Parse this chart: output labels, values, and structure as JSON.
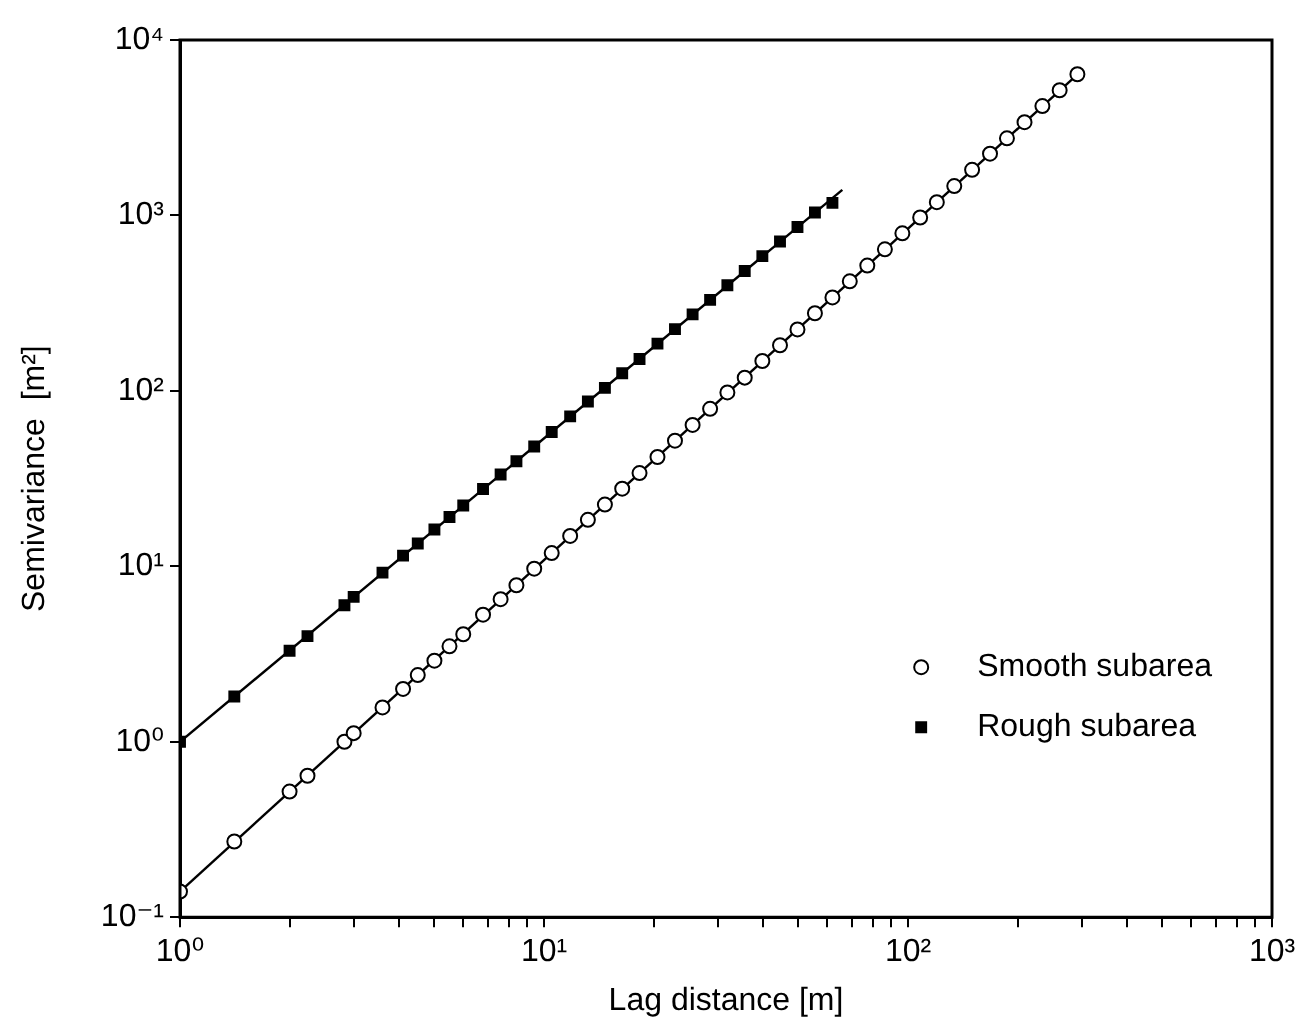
{
  "chart_data": {
    "type": "scatter",
    "xlabel": "Lag distance [m]",
    "ylabel": "Semivariance  [m²]",
    "log": "xy",
    "legend": "bottom right",
    "grid": false,
    "xlim": [
      1,
      1000
    ],
    "ylim": [
      0.1,
      10000
    ],
    "xticks": [
      {
        "value": 1,
        "label": "10⁰"
      },
      {
        "value": 2,
        "label": null
      },
      {
        "value": 3,
        "label": null
      },
      {
        "value": 4,
        "label": null
      },
      {
        "value": 5,
        "label": null
      },
      {
        "value": 6,
        "label": null
      },
      {
        "value": 7,
        "label": null
      },
      {
        "value": 8,
        "label": null
      },
      {
        "value": 9,
        "label": null
      },
      {
        "value": 10,
        "label": "10¹"
      },
      {
        "value": 20,
        "label": null
      },
      {
        "value": 30,
        "label": null
      },
      {
        "value": 40,
        "label": null
      },
      {
        "value": 50,
        "label": null
      },
      {
        "value": 60,
        "label": null
      },
      {
        "value": 70,
        "label": null
      },
      {
        "value": 80,
        "label": null
      },
      {
        "value": 90,
        "label": null
      },
      {
        "value": 100,
        "label": "10²"
      },
      {
        "value": 200,
        "label": null
      },
      {
        "value": 300,
        "label": null
      },
      {
        "value": 400,
        "label": null
      },
      {
        "value": 500,
        "label": null
      },
      {
        "value": 600,
        "label": null
      },
      {
        "value": 700,
        "label": null
      },
      {
        "value": 800,
        "label": null
      },
      {
        "value": 900,
        "label": null
      },
      {
        "value": 1000,
        "label": "10³"
      }
    ],
    "yticks": [
      {
        "value": 0.1,
        "label": "10⁻¹"
      },
      {
        "value": 1,
        "label": "10⁰"
      },
      {
        "value": 10,
        "label": "10¹"
      },
      {
        "value": 100,
        "label": "10²"
      },
      {
        "value": 1000,
        "label": "10³"
      },
      {
        "value": 10000,
        "label": "10⁴"
      }
    ],
    "series": [
      {
        "name": "Smooth subarea",
        "color": "#000000",
        "marker": "circle",
        "x": [
          1,
          1.41,
          2,
          2.24,
          2.83,
          3.0,
          3.6,
          4.1,
          4.5,
          5.0,
          5.5,
          6.0,
          6.8,
          7.6,
          8.4,
          9.4,
          10.5,
          11.8,
          13.2,
          14.7,
          16.4,
          18.3,
          20.5,
          22.9,
          25.6,
          28.6,
          31.9,
          35.6,
          39.8,
          44.5,
          49.7,
          55.5,
          62.0,
          69.2,
          77.3,
          86.4,
          96.5,
          108,
          120,
          134,
          150,
          168,
          187,
          209,
          234,
          261,
          292
        ],
        "values": [
          0.14,
          0.27,
          0.52,
          0.64,
          1.0,
          1.12,
          1.57,
          2.0,
          2.4,
          2.9,
          3.5,
          4.1,
          5.3,
          6.5,
          7.8,
          9.7,
          11.9,
          14.9,
          18.4,
          22.5,
          27.7,
          34,
          42,
          52,
          64,
          79,
          98,
          119,
          148,
          182,
          224,
          277,
          341,
          421,
          518,
          641,
          791,
          973,
          1190,
          1470,
          1820,
          2250,
          2750,
          3400,
          4200,
          5170,
          6380
        ]
      },
      {
        "name": "Rough subarea",
        "color": "#000000",
        "marker": "square",
        "x": [
          1,
          1.41,
          2,
          2.24,
          2.83,
          3.0,
          3.6,
          4.1,
          4.5,
          5.0,
          5.5,
          6.0,
          6.8,
          7.6,
          8.4,
          9.4,
          10.5,
          11.8,
          13.2,
          14.7,
          16.4,
          18.3,
          20.5,
          22.9,
          25.6,
          28.6,
          31.9,
          35.6,
          39.8,
          44.5,
          49.7,
          55.5,
          62.0
        ],
        "values": [
          1.0,
          1.81,
          3.3,
          4.0,
          6.0,
          6.7,
          9.2,
          11.5,
          13.5,
          16.2,
          19.1,
          22.2,
          27.6,
          33.4,
          39.7,
          48.2,
          58.3,
          71.6,
          87,
          104,
          126,
          152,
          186,
          225,
          273,
          330,
          400,
          482,
          586,
          710,
          859,
          1040,
          1180
        ]
      },
      {
        "type": "line",
        "color": "#000000",
        "marker": "none",
        "line_style": "solid",
        "x": [
          1,
          300
        ],
        "values": [
          0.14,
          6700
        ]
      },
      {
        "type": "line",
        "color": "#000000",
        "marker": "none",
        "line_style": "solid",
        "x": [
          1,
          66
        ],
        "values": [
          1.0,
          1400
        ]
      }
    ]
  }
}
